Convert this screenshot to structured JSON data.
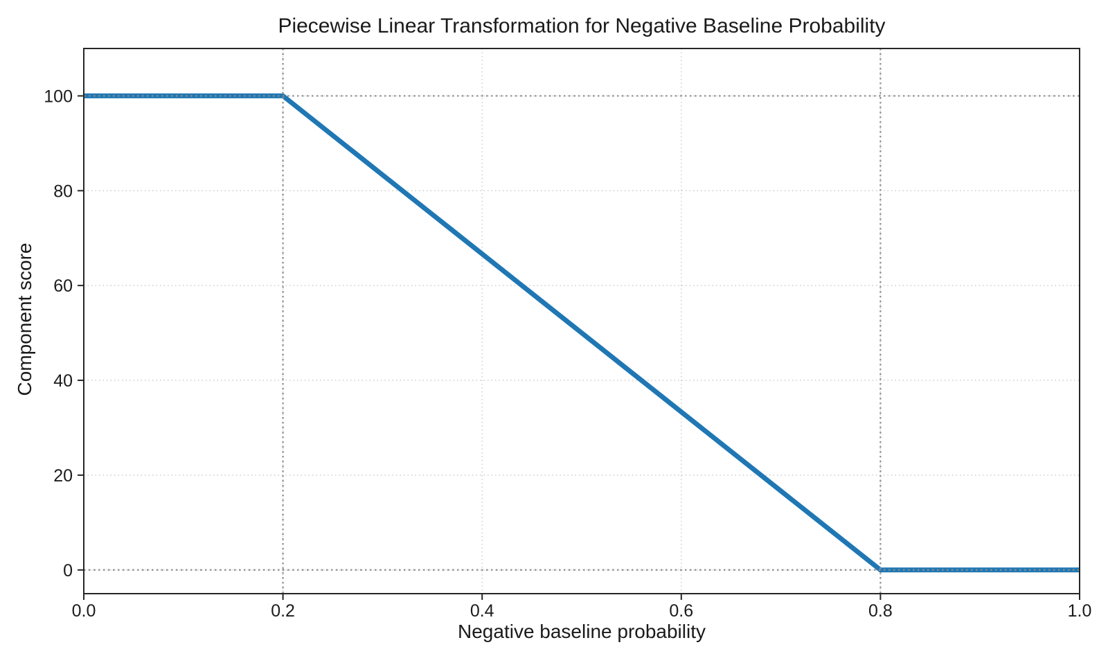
{
  "chart_data": {
    "type": "line",
    "title": "Piecewise Linear Transformation for Negative Baseline Probability",
    "xlabel": "Negative baseline probability",
    "ylabel": "Component score",
    "x": [
      0.0,
      0.2,
      0.8,
      1.0
    ],
    "y": [
      100,
      100,
      0,
      0
    ],
    "xlim": [
      0.0,
      1.0
    ],
    "ylim": [
      -5,
      110
    ],
    "xticks": [
      0.0,
      0.2,
      0.4,
      0.6,
      0.8,
      1.0
    ],
    "xtick_labels": [
      "0.0",
      "0.2",
      "0.4",
      "0.6",
      "0.8",
      "1.0"
    ],
    "yticks": [
      0,
      20,
      40,
      60,
      80,
      100
    ],
    "ytick_labels": [
      "0",
      "20",
      "40",
      "60",
      "80",
      "100"
    ],
    "grid": true,
    "legend": false,
    "reference_lines": {
      "x": [
        0.2,
        0.8
      ],
      "y": [
        0,
        100
      ]
    },
    "colors": {
      "line": "#1f77b4",
      "grid": "#c7c7c7",
      "reference": "#8e8e8e",
      "spine": "#262626",
      "text": "#1c1c1c"
    }
  }
}
